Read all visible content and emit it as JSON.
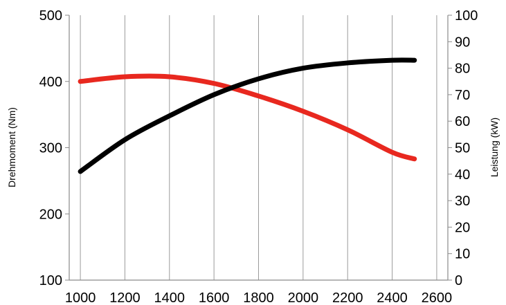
{
  "chart_data": {
    "type": "line",
    "x": [
      1000,
      1200,
      1400,
      1600,
      1800,
      2000,
      2200,
      2400,
      2500
    ],
    "xticks": [
      "1000",
      "1200",
      "1400",
      "1600",
      "1800",
      "2000",
      "2200",
      "2400",
      "2600"
    ],
    "xlim": [
      950,
      2650
    ],
    "y_left": {
      "label": "Drehmoment (Nm)",
      "ylim": [
        100,
        500
      ],
      "ticks": [
        "100",
        "200",
        "300",
        "400",
        "500"
      ]
    },
    "y_right": {
      "label": "Leistung (kW)",
      "ylim": [
        0,
        100
      ],
      "ticks": [
        "0",
        "10",
        "20",
        "30",
        "40",
        "50",
        "60",
        "70",
        "80",
        "90",
        "100"
      ]
    },
    "series": [
      {
        "axis": "left",
        "color": "#e8281f",
        "x": [
          1000,
          1200,
          1400,
          1600,
          1800,
          2000,
          2200,
          2400,
          2500
        ],
        "values": [
          400,
          407,
          407,
          397,
          378,
          355,
          327,
          293,
          283
        ]
      },
      {
        "axis": "right",
        "color": "#000000",
        "x": [
          1000,
          1200,
          1400,
          1600,
          1800,
          2000,
          2200,
          2400,
          2500
        ],
        "values": [
          41,
          53,
          62,
          70,
          76,
          80,
          82,
          83,
          83
        ]
      }
    ],
    "grid": "vertical"
  }
}
